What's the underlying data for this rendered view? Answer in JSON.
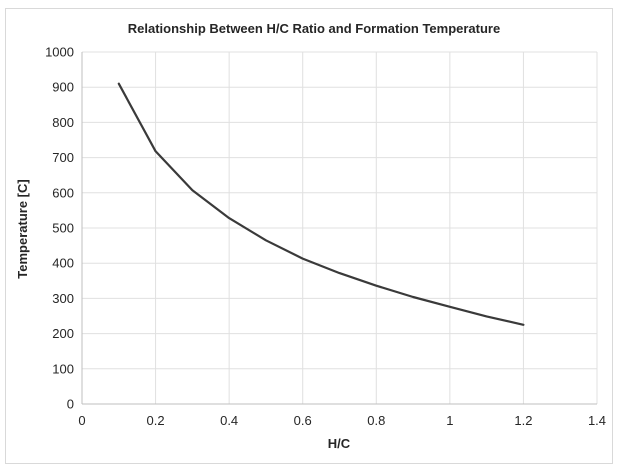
{
  "chart_data": {
    "type": "line",
    "title": "Relationship Between H/C Ratio and Formation Temperature",
    "xlabel": "H/C",
    "ylabel": "Temperature [C]",
    "xlim": [
      0,
      1.4
    ],
    "ylim": [
      0,
      1000
    ],
    "x_ticks": [
      "0",
      "0.2",
      "0.4",
      "0.6",
      "0.8",
      "1",
      "1.2",
      "1.4"
    ],
    "y_ticks": [
      "0",
      "100",
      "200",
      "300",
      "400",
      "500",
      "600",
      "700",
      "800",
      "900",
      "1000"
    ],
    "grid": true,
    "legend": "none",
    "line_color": "#3a3a3a",
    "series": [
      {
        "x": [
          0.1,
          0.2,
          0.3,
          0.4,
          0.5,
          0.6,
          0.7,
          0.8,
          0.9,
          1.0,
          1.1,
          1.2
        ],
        "values": [
          910,
          718,
          607,
          528,
          465,
          413,
          372,
          336,
          304,
          276,
          249,
          225
        ]
      }
    ]
  }
}
